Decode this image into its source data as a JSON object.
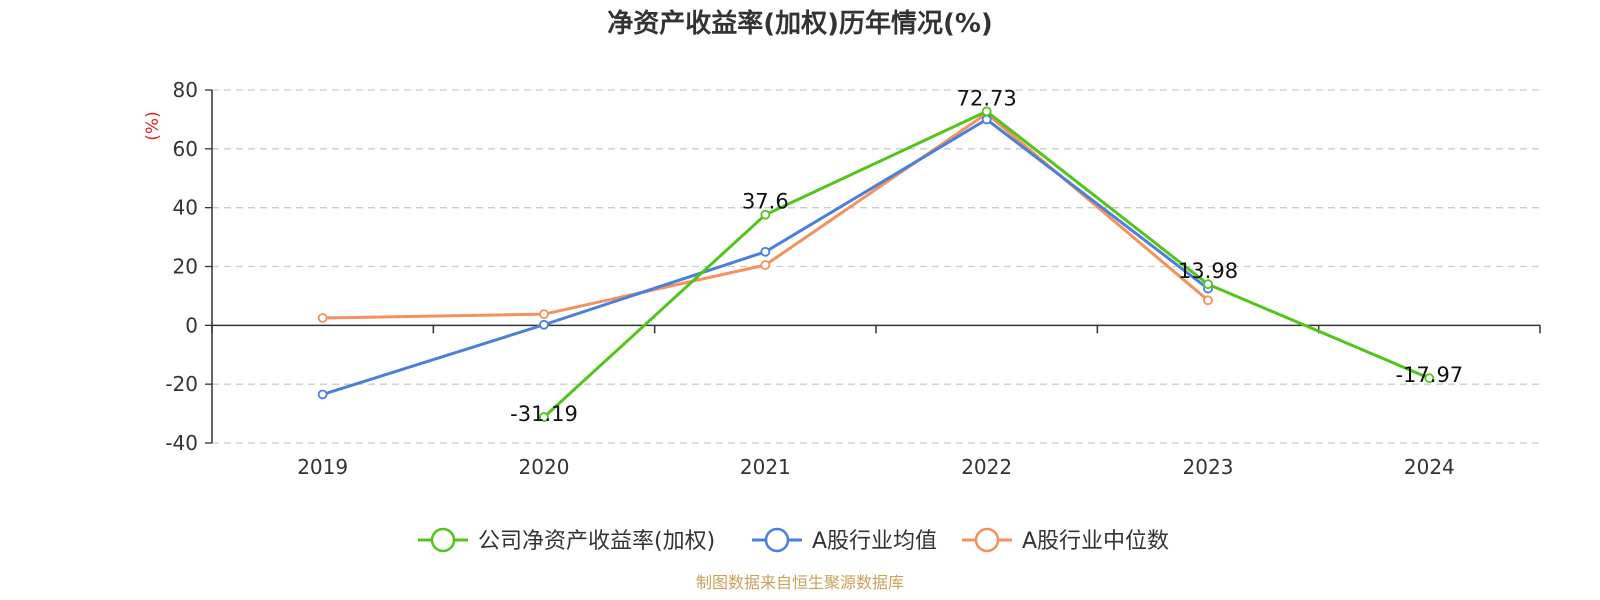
{
  "chart_data": {
    "type": "line",
    "title": "净资产收益率(加权)历年情况(%)",
    "ylabel": "(%)",
    "categories": [
      "2019",
      "2020",
      "2021",
      "2022",
      "2023",
      "2024"
    ],
    "ylim": [
      -40,
      80
    ],
    "yticks": [
      80,
      60,
      40,
      20,
      0,
      -20,
      -40
    ],
    "grid": true,
    "legend_position": "bottom-center",
    "series": [
      {
        "name": "公司净资产收益率(加权)",
        "color": "#52c41a",
        "values": [
          null,
          -31.19,
          37.6,
          72.73,
          13.98,
          -17.97
        ],
        "labels": [
          "",
          "-31.19",
          "37.6",
          "72.73",
          "13.98",
          "-17.97"
        ]
      },
      {
        "name": "A股行业均值",
        "color": "#4a7fdc",
        "values": [
          -23.5,
          0.2,
          25.0,
          70.0,
          12.5,
          null
        ]
      },
      {
        "name": "A股行业中位数",
        "color": "#f4915c",
        "values": [
          2.5,
          3.8,
          20.5,
          72.0,
          8.5,
          null
        ]
      }
    ]
  },
  "source": {
    "text": "制图数据来自恒生聚源数据库",
    "color": "#c9a35a"
  },
  "colors": {
    "axis": "#333333",
    "grid": "#cccccc",
    "unit_label": "#e02020"
  }
}
